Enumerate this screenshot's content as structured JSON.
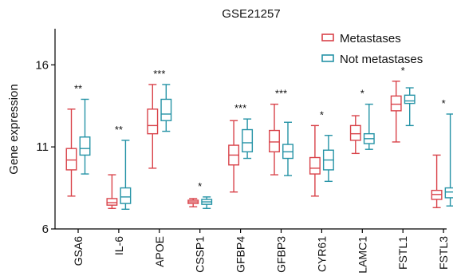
{
  "chart_data": {
    "type": "boxplot",
    "title": "GSE21257",
    "ylabel": "Gene expression",
    "xlabel": "",
    "ylim": [
      6,
      18.2
    ],
    "yticks": [
      6,
      11,
      16
    ],
    "grid": false,
    "legend_position": "top-right",
    "categories": [
      "GSA6",
      "IL-6",
      "APOE",
      "CSSP1",
      "GFBP4",
      "GFBP3",
      "CYR61",
      "LAMC1",
      "FSTL1",
      "FSTL3"
    ],
    "significance": [
      "**",
      "**",
      "***",
      "*",
      "***",
      "***",
      "*",
      "*",
      "*",
      "*"
    ],
    "series": [
      {
        "name": "Metastases",
        "color": "#d9434a",
        "boxes": [
          {
            "min": 8.0,
            "q1": 9.6,
            "median": 10.2,
            "q3": 10.9,
            "max": 13.3
          },
          {
            "min": 7.25,
            "q1": 7.45,
            "median": 7.6,
            "q3": 7.85,
            "max": 9.3
          },
          {
            "min": 9.7,
            "q1": 11.8,
            "median": 12.3,
            "q3": 13.3,
            "max": 14.8
          },
          {
            "min": 7.35,
            "q1": 7.55,
            "median": 7.65,
            "q3": 7.75,
            "max": 7.85
          },
          {
            "min": 8.25,
            "q1": 9.9,
            "median": 10.5,
            "q3": 11.1,
            "max": 12.6
          },
          {
            "min": 9.3,
            "q1": 10.7,
            "median": 11.3,
            "q3": 12.0,
            "max": 13.6
          },
          {
            "min": 8.0,
            "q1": 9.35,
            "median": 9.7,
            "q3": 10.35,
            "max": 12.3
          },
          {
            "min": 10.6,
            "q1": 11.4,
            "median": 11.8,
            "q3": 12.3,
            "max": 12.9
          },
          {
            "min": 11.3,
            "q1": 13.2,
            "median": 13.6,
            "q3": 14.1,
            "max": 15.0
          },
          {
            "min": 7.3,
            "q1": 7.8,
            "median": 8.1,
            "q3": 8.35,
            "max": 10.5
          }
        ]
      },
      {
        "name": "Not metastases",
        "color": "#2593a6",
        "boxes": [
          {
            "min": 9.35,
            "q1": 10.5,
            "median": 10.9,
            "q3": 11.6,
            "max": 13.9
          },
          {
            "min": 7.2,
            "q1": 7.55,
            "median": 7.95,
            "q3": 8.5,
            "max": 11.4
          },
          {
            "min": 11.95,
            "q1": 12.6,
            "median": 13.0,
            "q3": 13.9,
            "max": 14.8
          },
          {
            "min": 7.25,
            "q1": 7.5,
            "median": 7.65,
            "q3": 7.8,
            "max": 7.95
          },
          {
            "min": 10.3,
            "q1": 10.7,
            "median": 11.25,
            "q3": 12.05,
            "max": 12.7
          },
          {
            "min": 9.25,
            "q1": 10.3,
            "median": 10.7,
            "q3": 11.15,
            "max": 12.5
          },
          {
            "min": 8.9,
            "q1": 9.6,
            "median": 10.2,
            "q3": 10.8,
            "max": 11.7
          },
          {
            "min": 10.85,
            "q1": 11.2,
            "median": 11.5,
            "q3": 11.8,
            "max": 13.6
          },
          {
            "min": 12.3,
            "q1": 13.65,
            "median": 13.8,
            "q3": 14.15,
            "max": 14.6
          },
          {
            "min": 7.4,
            "q1": 7.9,
            "median": 8.25,
            "q3": 8.5,
            "max": 13.0
          }
        ]
      }
    ]
  }
}
